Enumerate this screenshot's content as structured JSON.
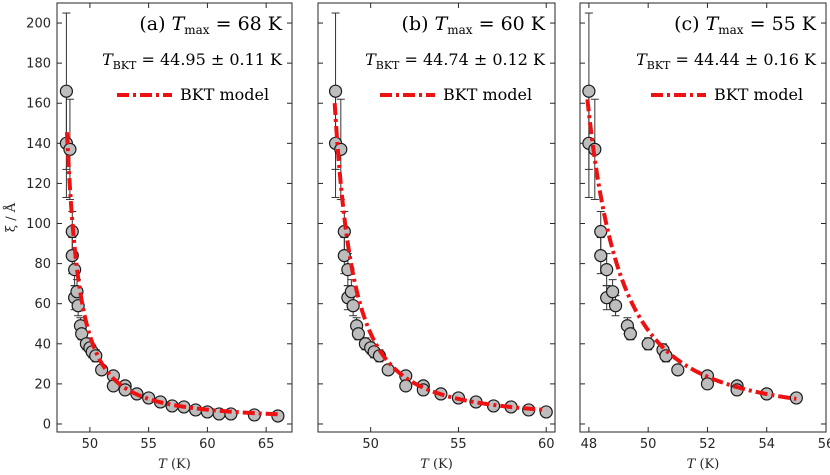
{
  "chart_data": [
    {
      "type": "scatter",
      "panel_label": "(a)",
      "title_prefix": "T",
      "title_sub": "max",
      "title_value": "= 68 K",
      "tbkt_prefix": "T",
      "tbkt_sub": "BKT",
      "tbkt_value": "= 44.95 ± 0.11 K",
      "legend": "BKT model",
      "xlabel_var": "T",
      "xlabel_unit": "(K)",
      "ylabel": "ξ / Å",
      "xlim": [
        47.2,
        67.2
      ],
      "ylim": [
        -4,
        210
      ],
      "xticks": [
        50,
        55,
        60,
        65
      ],
      "yticks": [
        0,
        20,
        40,
        60,
        80,
        100,
        120,
        140,
        160,
        180,
        200
      ],
      "show_yticklabels": true,
      "points": [
        {
          "x": 48.0,
          "y": 166,
          "err": 39
        },
        {
          "x": 48.0,
          "y": 140,
          "err": 27
        },
        {
          "x": 48.3,
          "y": 137,
          "err": 25
        },
        {
          "x": 48.5,
          "y": 96,
          "err": 10
        },
        {
          "x": 48.5,
          "y": 84,
          "err": 9
        },
        {
          "x": 48.7,
          "y": 77,
          "err": 8
        },
        {
          "x": 48.7,
          "y": 63,
          "err": 6
        },
        {
          "x": 48.9,
          "y": 66,
          "err": 6
        },
        {
          "x": 49.0,
          "y": 59,
          "err": 5
        },
        {
          "x": 49.2,
          "y": 49,
          "err": 4
        },
        {
          "x": 49.3,
          "y": 45,
          "err": 3
        },
        {
          "x": 49.7,
          "y": 40,
          "err": 3
        },
        {
          "x": 50.0,
          "y": 38,
          "err": 3
        },
        {
          "x": 50.2,
          "y": 36,
          "err": 3
        },
        {
          "x": 50.5,
          "y": 34,
          "err": 3
        },
        {
          "x": 51.0,
          "y": 27,
          "err": 2
        },
        {
          "x": 52.0,
          "y": 24,
          "err": 2
        },
        {
          "x": 52.0,
          "y": 19,
          "err": 2
        },
        {
          "x": 53.0,
          "y": 19,
          "err": 1.5
        },
        {
          "x": 53.0,
          "y": 17,
          "err": 1.5
        },
        {
          "x": 54.0,
          "y": 15,
          "err": 1.5
        },
        {
          "x": 55.0,
          "y": 13,
          "err": 1
        },
        {
          "x": 56.0,
          "y": 11,
          "err": 1
        },
        {
          "x": 57.0,
          "y": 9,
          "err": 1
        },
        {
          "x": 58.0,
          "y": 8.5,
          "err": 1
        },
        {
          "x": 59.0,
          "y": 7,
          "err": 1
        },
        {
          "x": 60.0,
          "y": 6,
          "err": 1
        },
        {
          "x": 61.0,
          "y": 5,
          "err": 1
        },
        {
          "x": 62.0,
          "y": 5,
          "err": 1
        },
        {
          "x": 64.0,
          "y": 4.5,
          "err": 1
        },
        {
          "x": 66.0,
          "y": 4,
          "err": 1
        }
      ],
      "model": {
        "A": 26.3,
        "b": 1.45,
        "Tbkt": 44.95,
        "xmin": 48.05,
        "xmax": 66.0
      }
    },
    {
      "type": "scatter",
      "panel_label": "(b)",
      "title_prefix": "T",
      "title_sub": "max",
      "title_value": "= 60 K",
      "tbkt_prefix": "T",
      "tbkt_sub": "BKT",
      "tbkt_value": "= 44.74 ± 0.12 K",
      "legend": "BKT model",
      "xlabel_var": "T",
      "xlabel_unit": "(K)",
      "ylabel": "",
      "xlim": [
        47.0,
        60.5
      ],
      "ylim": [
        -4,
        210
      ],
      "xticks": [
        50,
        55,
        60
      ],
      "yticks": [
        0,
        20,
        40,
        60,
        80,
        100,
        120,
        140,
        160,
        180,
        200
      ],
      "show_yticklabels": false,
      "points": [
        {
          "x": 48.0,
          "y": 166,
          "err": 39
        },
        {
          "x": 48.0,
          "y": 140,
          "err": 27
        },
        {
          "x": 48.3,
          "y": 137,
          "err": 25
        },
        {
          "x": 48.5,
          "y": 96,
          "err": 10
        },
        {
          "x": 48.5,
          "y": 84,
          "err": 9
        },
        {
          "x": 48.7,
          "y": 77,
          "err": 8
        },
        {
          "x": 48.7,
          "y": 63,
          "err": 6
        },
        {
          "x": 48.9,
          "y": 66,
          "err": 6
        },
        {
          "x": 49.0,
          "y": 59,
          "err": 5
        },
        {
          "x": 49.2,
          "y": 49,
          "err": 4
        },
        {
          "x": 49.3,
          "y": 45,
          "err": 3
        },
        {
          "x": 49.7,
          "y": 40,
          "err": 3
        },
        {
          "x": 50.0,
          "y": 38,
          "err": 3
        },
        {
          "x": 50.2,
          "y": 36,
          "err": 3
        },
        {
          "x": 50.5,
          "y": 34,
          "err": 3
        },
        {
          "x": 51.0,
          "y": 27,
          "err": 2
        },
        {
          "x": 52.0,
          "y": 24,
          "err": 2
        },
        {
          "x": 52.0,
          "y": 19,
          "err": 2
        },
        {
          "x": 53.0,
          "y": 19,
          "err": 1.5
        },
        {
          "x": 53.0,
          "y": 17,
          "err": 1.5
        },
        {
          "x": 54.0,
          "y": 15,
          "err": 1.5
        },
        {
          "x": 55.0,
          "y": 13,
          "err": 1
        },
        {
          "x": 56.0,
          "y": 11,
          "err": 1
        },
        {
          "x": 57.0,
          "y": 9,
          "err": 1
        },
        {
          "x": 58.0,
          "y": 8.5,
          "err": 1
        },
        {
          "x": 59.0,
          "y": 7,
          "err": 1
        },
        {
          "x": 60.0,
          "y": 6,
          "err": 1
        }
      ],
      "model": {
        "A": 25.2,
        "b": 1.55,
        "Tbkt": 44.74,
        "xmin": 47.95,
        "xmax": 60.0
      }
    },
    {
      "type": "scatter",
      "panel_label": "(c)",
      "title_prefix": "T",
      "title_sub": "max",
      "title_value": "= 55 K",
      "tbkt_prefix": "T",
      "tbkt_sub": "BKT",
      "tbkt_value": "= 44.44 ± 0.16 K",
      "legend": "BKT model",
      "xlabel_var": "T",
      "xlabel_unit": "(K)",
      "ylabel": "",
      "xlim": [
        47.7,
        56.0
      ],
      "ylim": [
        -4,
        210
      ],
      "xticks": [
        48,
        50,
        52,
        54,
        56
      ],
      "yticks": [
        0,
        20,
        40,
        60,
        80,
        100,
        120,
        140,
        160,
        180,
        200
      ],
      "show_yticklabels": false,
      "points": [
        {
          "x": 48.0,
          "y": 166,
          "err": 39
        },
        {
          "x": 48.0,
          "y": 140,
          "err": 27
        },
        {
          "x": 48.2,
          "y": 137,
          "err": 25
        },
        {
          "x": 48.4,
          "y": 96,
          "err": 10
        },
        {
          "x": 48.4,
          "y": 84,
          "err": 9
        },
        {
          "x": 48.6,
          "y": 77,
          "err": 8
        },
        {
          "x": 48.6,
          "y": 63,
          "err": 6
        },
        {
          "x": 48.8,
          "y": 66,
          "err": 6
        },
        {
          "x": 48.9,
          "y": 59,
          "err": 5
        },
        {
          "x": 49.3,
          "y": 49,
          "err": 4
        },
        {
          "x": 49.4,
          "y": 45,
          "err": 3
        },
        {
          "x": 50.0,
          "y": 40,
          "err": 3
        },
        {
          "x": 50.5,
          "y": 37,
          "err": 3
        },
        {
          "x": 50.6,
          "y": 34,
          "err": 3
        },
        {
          "x": 51.0,
          "y": 27,
          "err": 2
        },
        {
          "x": 52.0,
          "y": 24,
          "err": 2
        },
        {
          "x": 52.0,
          "y": 20,
          "err": 2
        },
        {
          "x": 53.0,
          "y": 19,
          "err": 1.5
        },
        {
          "x": 53.0,
          "y": 17,
          "err": 1.5
        },
        {
          "x": 54.0,
          "y": 15,
          "err": 1.5
        },
        {
          "x": 55.0,
          "y": 13,
          "err": 1
        }
      ],
      "model": {
        "A": 23.6,
        "b": 1.7,
        "Tbkt": 44.44,
        "xmin": 47.95,
        "xmax": 55.0
      }
    }
  ]
}
